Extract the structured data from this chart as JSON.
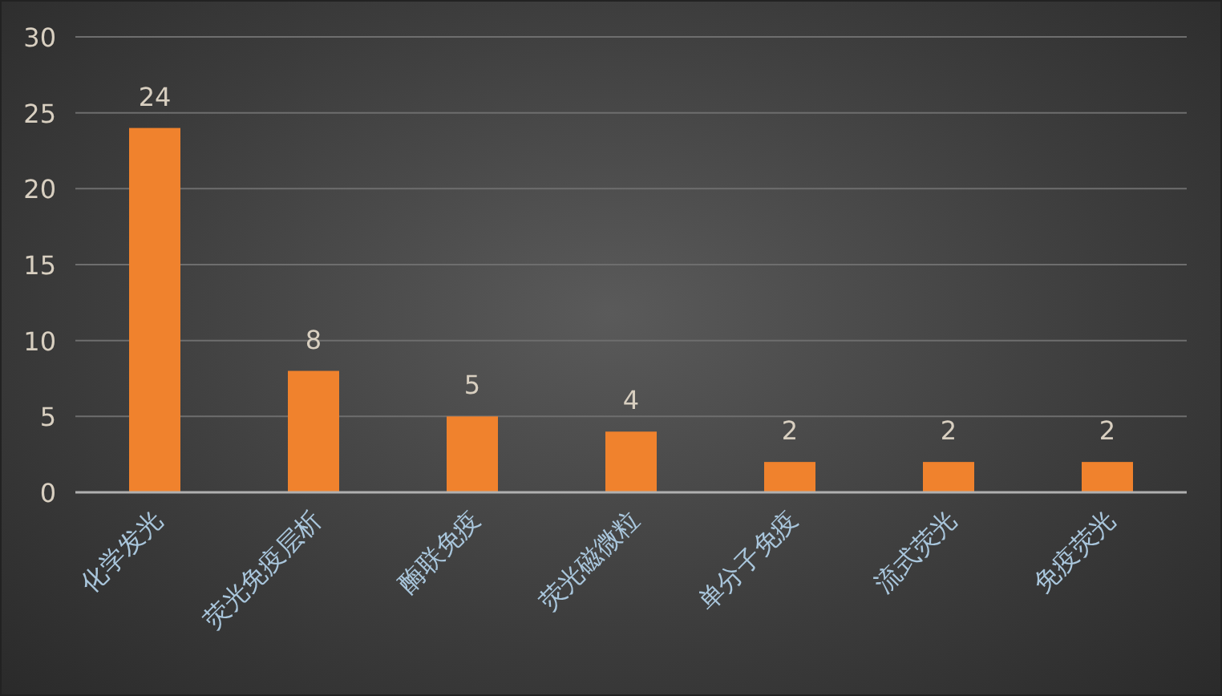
{
  "chart_data": {
    "type": "bar",
    "categories": [
      "化学发光",
      "荧光免疫层析",
      "酶联免疫",
      "荧光磁微粒",
      "单分子免疫",
      "流式荧光",
      "免疫荧光"
    ],
    "values": [
      24,
      8,
      5,
      4,
      2,
      2,
      2
    ],
    "color": "#f0822d",
    "ylim": [
      0,
      30
    ],
    "yticks": [
      0,
      5,
      10,
      15,
      20,
      25,
      30
    ],
    "grid": "y",
    "data_labels": true
  }
}
